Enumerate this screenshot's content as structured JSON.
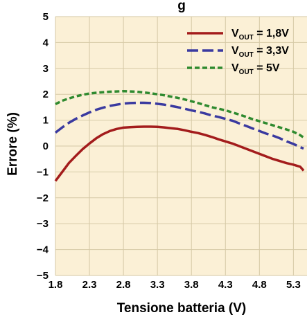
{
  "chart_data": {
    "type": "line",
    "title_partial": "g",
    "xlabel": "Tensione batteria (V)",
    "ylabel": "Errore (%)",
    "xlim": [
      1.8,
      5.5
    ],
    "ylim": [
      -5,
      5
    ],
    "x_ticks": [
      "1.8",
      "2.3",
      "2.8",
      "3.3",
      "3.8",
      "4.3",
      "4.8",
      "5.3"
    ],
    "y_ticks": [
      "5",
      "4",
      "3",
      "2",
      "1",
      "0",
      "−1",
      "−2",
      "−3",
      "−4",
      "−5"
    ],
    "grid": true,
    "legend_position": "top-right",
    "series": [
      {
        "name_main": "V",
        "name_sub": "OUT",
        "name_value": " = 1,8V",
        "color": "#a31c1c",
        "dash": "solid",
        "points": [
          [
            1.8,
            -1.35
          ],
          [
            1.9,
            -1.0
          ],
          [
            2.0,
            -0.65
          ],
          [
            2.1,
            -0.38
          ],
          [
            2.2,
            -0.12
          ],
          [
            2.3,
            0.1
          ],
          [
            2.4,
            0.3
          ],
          [
            2.5,
            0.46
          ],
          [
            2.6,
            0.58
          ],
          [
            2.7,
            0.66
          ],
          [
            2.8,
            0.71
          ],
          [
            2.9,
            0.73
          ],
          [
            3.0,
            0.74
          ],
          [
            3.1,
            0.75
          ],
          [
            3.2,
            0.75
          ],
          [
            3.3,
            0.74
          ],
          [
            3.4,
            0.72
          ],
          [
            3.5,
            0.69
          ],
          [
            3.6,
            0.66
          ],
          [
            3.7,
            0.61
          ],
          [
            3.8,
            0.55
          ],
          [
            3.9,
            0.5
          ],
          [
            4.0,
            0.43
          ],
          [
            4.1,
            0.35
          ],
          [
            4.2,
            0.26
          ],
          [
            4.3,
            0.18
          ],
          [
            4.4,
            0.1
          ],
          [
            4.5,
            0.0
          ],
          [
            4.6,
            -0.1
          ],
          [
            4.7,
            -0.2
          ],
          [
            4.8,
            -0.3
          ],
          [
            4.9,
            -0.4
          ],
          [
            5.0,
            -0.5
          ],
          [
            5.1,
            -0.58
          ],
          [
            5.2,
            -0.66
          ],
          [
            5.3,
            -0.72
          ],
          [
            5.4,
            -0.8
          ],
          [
            5.45,
            -0.95
          ]
        ]
      },
      {
        "name_main": "V",
        "name_sub": "OUT",
        "name_value": " = 3,3V",
        "color": "#3a3aa0",
        "dash": "long-dash",
        "points": [
          [
            1.8,
            0.52
          ],
          [
            1.9,
            0.72
          ],
          [
            2.0,
            0.9
          ],
          [
            2.1,
            1.05
          ],
          [
            2.2,
            1.18
          ],
          [
            2.3,
            1.3
          ],
          [
            2.4,
            1.4
          ],
          [
            2.5,
            1.48
          ],
          [
            2.6,
            1.55
          ],
          [
            2.7,
            1.6
          ],
          [
            2.8,
            1.64
          ],
          [
            2.9,
            1.66
          ],
          [
            3.0,
            1.67
          ],
          [
            3.1,
            1.67
          ],
          [
            3.2,
            1.66
          ],
          [
            3.3,
            1.63
          ],
          [
            3.4,
            1.6
          ],
          [
            3.5,
            1.55
          ],
          [
            3.6,
            1.5
          ],
          [
            3.7,
            1.44
          ],
          [
            3.8,
            1.38
          ],
          [
            3.9,
            1.32
          ],
          [
            4.0,
            1.26
          ],
          [
            4.1,
            1.18
          ],
          [
            4.2,
            1.12
          ],
          [
            4.3,
            1.05
          ],
          [
            4.4,
            0.98
          ],
          [
            4.5,
            0.88
          ],
          [
            4.6,
            0.78
          ],
          [
            4.7,
            0.68
          ],
          [
            4.8,
            0.58
          ],
          [
            4.9,
            0.48
          ],
          [
            5.0,
            0.4
          ],
          [
            5.1,
            0.3
          ],
          [
            5.2,
            0.18
          ],
          [
            5.3,
            0.08
          ],
          [
            5.4,
            -0.04
          ],
          [
            5.45,
            -0.1
          ]
        ]
      },
      {
        "name_main": "V",
        "name_sub": "OUT",
        "name_value": " = 5V",
        "color": "#2f8a2f",
        "dash": "short-dash",
        "points": [
          [
            1.8,
            1.62
          ],
          [
            1.9,
            1.75
          ],
          [
            2.0,
            1.84
          ],
          [
            2.1,
            1.92
          ],
          [
            2.2,
            1.98
          ],
          [
            2.3,
            2.03
          ],
          [
            2.4,
            2.06
          ],
          [
            2.5,
            2.08
          ],
          [
            2.6,
            2.1
          ],
          [
            2.7,
            2.11
          ],
          [
            2.8,
            2.12
          ],
          [
            2.9,
            2.11
          ],
          [
            3.0,
            2.1
          ],
          [
            3.1,
            2.07
          ],
          [
            3.2,
            2.04
          ],
          [
            3.3,
            2.0
          ],
          [
            3.4,
            1.96
          ],
          [
            3.5,
            1.91
          ],
          [
            3.6,
            1.86
          ],
          [
            3.7,
            1.8
          ],
          [
            3.8,
            1.73
          ],
          [
            3.9,
            1.66
          ],
          [
            4.0,
            1.58
          ],
          [
            4.1,
            1.5
          ],
          [
            4.2,
            1.44
          ],
          [
            4.3,
            1.38
          ],
          [
            4.4,
            1.3
          ],
          [
            4.5,
            1.22
          ],
          [
            4.6,
            1.13
          ],
          [
            4.7,
            1.04
          ],
          [
            4.8,
            0.96
          ],
          [
            4.9,
            0.88
          ],
          [
            5.0,
            0.8
          ],
          [
            5.1,
            0.72
          ],
          [
            5.2,
            0.64
          ],
          [
            5.3,
            0.55
          ],
          [
            5.4,
            0.42
          ],
          [
            5.45,
            0.33
          ]
        ]
      }
    ]
  },
  "colors": {
    "plot_background": "#fbf0d6",
    "grid": "#d6c9a6"
  }
}
